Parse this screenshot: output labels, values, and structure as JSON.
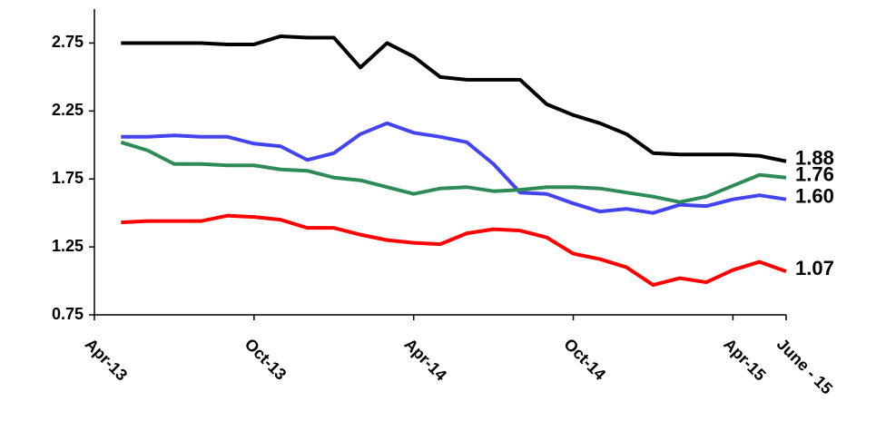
{
  "chart_data": {
    "type": "line",
    "x": [
      "2013-05",
      "2013-06",
      "2013-07",
      "2013-08",
      "2013-09",
      "2013-10",
      "2013-11",
      "2013-12",
      "2014-01",
      "2014-02",
      "2014-03",
      "2014-04",
      "2014-05",
      "2014-06",
      "2014-07",
      "2014-08",
      "2014-09",
      "2014-10",
      "2014-11",
      "2014-12",
      "2015-01",
      "2015-02",
      "2015-03",
      "2015-04",
      "2015-05",
      "2015-06"
    ],
    "xlim": [
      "2013-04",
      "2015-06"
    ],
    "xticks": [
      {
        "value": "2013-04",
        "label": "Apr-13"
      },
      {
        "value": "2013-10",
        "label": "Oct-13"
      },
      {
        "value": "2014-04",
        "label": "Apr-14"
      },
      {
        "value": "2014-10",
        "label": "Oct-14"
      },
      {
        "value": "2015-04",
        "label": "Apr-15"
      },
      {
        "value": "2015-06",
        "label": "June - 15"
      }
    ],
    "ylim": [
      0.75,
      3.0
    ],
    "yticks": [
      0.75,
      1.25,
      1.75,
      2.25,
      2.75
    ],
    "grid": false,
    "series": [
      {
        "color": "#000000",
        "values": [
          2.75,
          2.75,
          2.75,
          2.75,
          2.74,
          2.74,
          2.8,
          2.79,
          2.79,
          2.57,
          2.75,
          2.65,
          2.5,
          2.48,
          2.48,
          2.48,
          2.3,
          2.22,
          2.16,
          2.08,
          1.94,
          1.93,
          1.93,
          1.93,
          1.92,
          1.88
        ],
        "value_labels": [
          null,
          null,
          null,
          null,
          null,
          null,
          null,
          null,
          null,
          null,
          null,
          null,
          null,
          null,
          null,
          null,
          null,
          null,
          null,
          null,
          null,
          null,
          null,
          null,
          null,
          "1.88"
        ]
      },
      {
        "color": "#4444ee",
        "values": [
          2.06,
          2.06,
          2.07,
          2.06,
          2.06,
          2.01,
          1.99,
          1.89,
          1.94,
          2.08,
          2.16,
          2.09,
          2.06,
          2.02,
          1.86,
          1.65,
          1.64,
          1.57,
          1.51,
          1.53,
          1.5,
          1.56,
          1.55,
          1.6,
          1.63,
          1.6
        ],
        "value_labels": [
          null,
          null,
          null,
          null,
          null,
          null,
          null,
          null,
          null,
          null,
          null,
          null,
          null,
          null,
          null,
          null,
          null,
          null,
          null,
          null,
          null,
          null,
          null,
          null,
          null,
          "1.60"
        ]
      },
      {
        "color": "#2e8b57",
        "values": [
          2.02,
          1.96,
          1.86,
          1.86,
          1.85,
          1.85,
          1.82,
          1.81,
          1.76,
          1.74,
          1.69,
          1.64,
          1.68,
          1.69,
          1.66,
          1.67,
          1.69,
          1.69,
          1.68,
          1.65,
          1.62,
          1.58,
          1.62,
          1.7,
          1.78,
          1.76
        ],
        "value_labels": [
          null,
          null,
          null,
          null,
          null,
          null,
          null,
          null,
          null,
          null,
          null,
          null,
          null,
          null,
          null,
          null,
          null,
          null,
          null,
          null,
          null,
          null,
          null,
          null,
          null,
          "1.76"
        ]
      },
      {
        "color": "#ff0000",
        "values": [
          1.43,
          1.44,
          1.44,
          1.44,
          1.48,
          1.47,
          1.45,
          1.39,
          1.39,
          1.34,
          1.3,
          1.28,
          1.27,
          1.35,
          1.38,
          1.37,
          1.32,
          1.2,
          1.16,
          1.1,
          0.97,
          1.02,
          0.99,
          1.08,
          1.14,
          1.07
        ],
        "value_labels": [
          null,
          null,
          null,
          null,
          null,
          null,
          null,
          null,
          null,
          null,
          null,
          null,
          null,
          null,
          null,
          null,
          null,
          null,
          null,
          null,
          null,
          null,
          null,
          null,
          null,
          "1.07"
        ]
      }
    ]
  }
}
